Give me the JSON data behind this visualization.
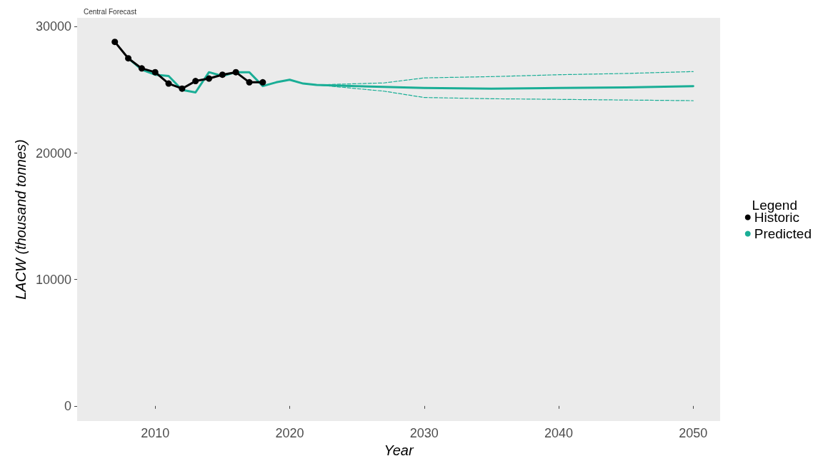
{
  "chart_data": {
    "type": "line",
    "xlabel": "Year",
    "ylabel": "LACW (thousand tonnes)",
    "legend_title": "Legend",
    "annotations": [
      "Central Forecast"
    ],
    "xlim": [
      2004.2,
      2052
    ],
    "xticks": [
      2010,
      2020,
      2030,
      2040,
      2050
    ],
    "ylim": [
      -1200,
      30700
    ],
    "yticks": [
      0,
      10000,
      20000,
      30000
    ],
    "grid": false,
    "legend": "right",
    "line_style": "solid",
    "series": [
      {
        "name": "Historic",
        "color": "#000000",
        "marker": "circle",
        "x": [
          2007,
          2008,
          2009,
          2010,
          2011,
          2012,
          2013,
          2014,
          2015,
          2016,
          2017,
          2018
        ],
        "values": [
          28800,
          27500,
          26700,
          26400,
          25500,
          25100,
          25700,
          25900,
          26200,
          26400,
          25600,
          25600
        ]
      },
      {
        "name": "Predicted",
        "color": "#1aae96",
        "marker": "none",
        "x": [
          2008,
          2009,
          2010,
          2011,
          2012,
          2013,
          2014,
          2015,
          2016,
          2017,
          2018,
          2019,
          2020,
          2021,
          2022,
          2025,
          2030,
          2035,
          2040,
          2045,
          2050
        ],
        "values": [
          27500,
          26600,
          26200,
          26100,
          25000,
          24800,
          26400,
          26100,
          26400,
          26400,
          25300,
          25600,
          25800,
          25500,
          25400,
          25300,
          25150,
          25100,
          25150,
          25200,
          25300
        ]
      },
      {
        "color": "#1aae96",
        "marker": "none",
        "line_style": "dashed",
        "x": [
          2022,
          2027,
          2030,
          2035,
          2040,
          2045,
          2050
        ],
        "values": [
          25400,
          25550,
          25950,
          26050,
          26200,
          26300,
          26450
        ]
      },
      {
        "color": "#1aae96",
        "marker": "none",
        "line_style": "dashed",
        "x": [
          2022,
          2027,
          2030,
          2035,
          2040,
          2045,
          2050
        ],
        "values": [
          25400,
          24900,
          24400,
          24300,
          24250,
          24200,
          24150
        ]
      }
    ]
  }
}
